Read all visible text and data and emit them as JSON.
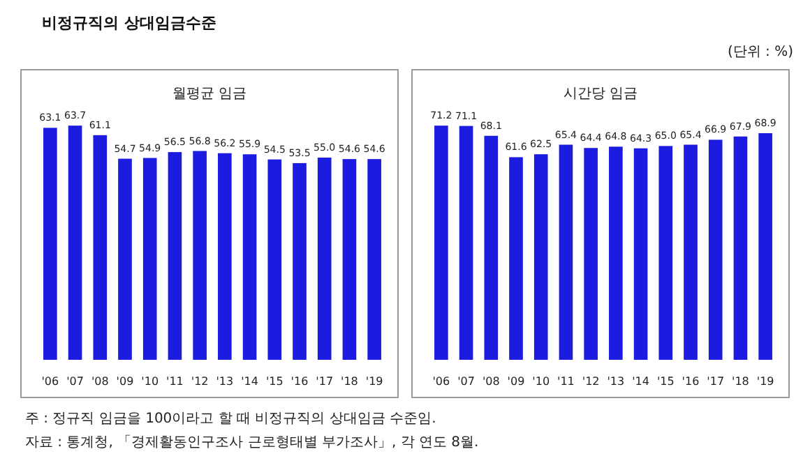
{
  "chart_data": [
    {
      "type": "bar",
      "title": "비정규직의 상대임금수준",
      "subtitle": "월평균 임금",
      "annotations": [
        "(단위 : %)",
        "주 : 정규직 임금을 100이라고 할 때 비정규직의 상대임금 수준임.",
        "자료 : 통계청, 「경제활동인구조사 근로형태별 부가조사」, 각 연도 8월."
      ],
      "categories": [
        "'06",
        "'07",
        "'08",
        "'09",
        "'10",
        "'11",
        "'12",
        "'13",
        "'14",
        "'15",
        "'16",
        "'17",
        "'18",
        "'19"
      ],
      "values": [
        63.1,
        63.7,
        61.1,
        54.7,
        54.9,
        56.5,
        56.8,
        56.2,
        55.9,
        54.5,
        53.5,
        55.0,
        54.6,
        54.6
      ],
      "value_labels": [
        "63.1",
        "63.7",
        "61.1",
        "54.7",
        "54.9",
        "56.5",
        "56.8",
        "56.2",
        "55.9",
        "54.5",
        "53.5",
        "55.0",
        "54.6",
        "54.6"
      ],
      "color": "#1c1ce0",
      "tick_labels": "x"
    },
    {
      "type": "bar",
      "subtitle": "시간당 임금",
      "categories": [
        "'06",
        "'07",
        "'08",
        "'09",
        "'10",
        "'11",
        "'12",
        "'13",
        "'14",
        "'15",
        "'16",
        "'17",
        "'18",
        "'19"
      ],
      "values": [
        71.2,
        71.1,
        68.1,
        61.6,
        62.5,
        65.4,
        64.4,
        64.8,
        64.3,
        65.0,
        65.4,
        66.9,
        67.9,
        68.9
      ],
      "value_labels": [
        "71.2",
        "71.1",
        "68.1",
        "61.6",
        "62.5",
        "65.4",
        "64.4",
        "64.8",
        "64.3",
        "65.0",
        "65.4",
        "66.9",
        "67.9",
        "68.9"
      ],
      "color": "#1c1ce0",
      "tick_labels": "x"
    }
  ]
}
